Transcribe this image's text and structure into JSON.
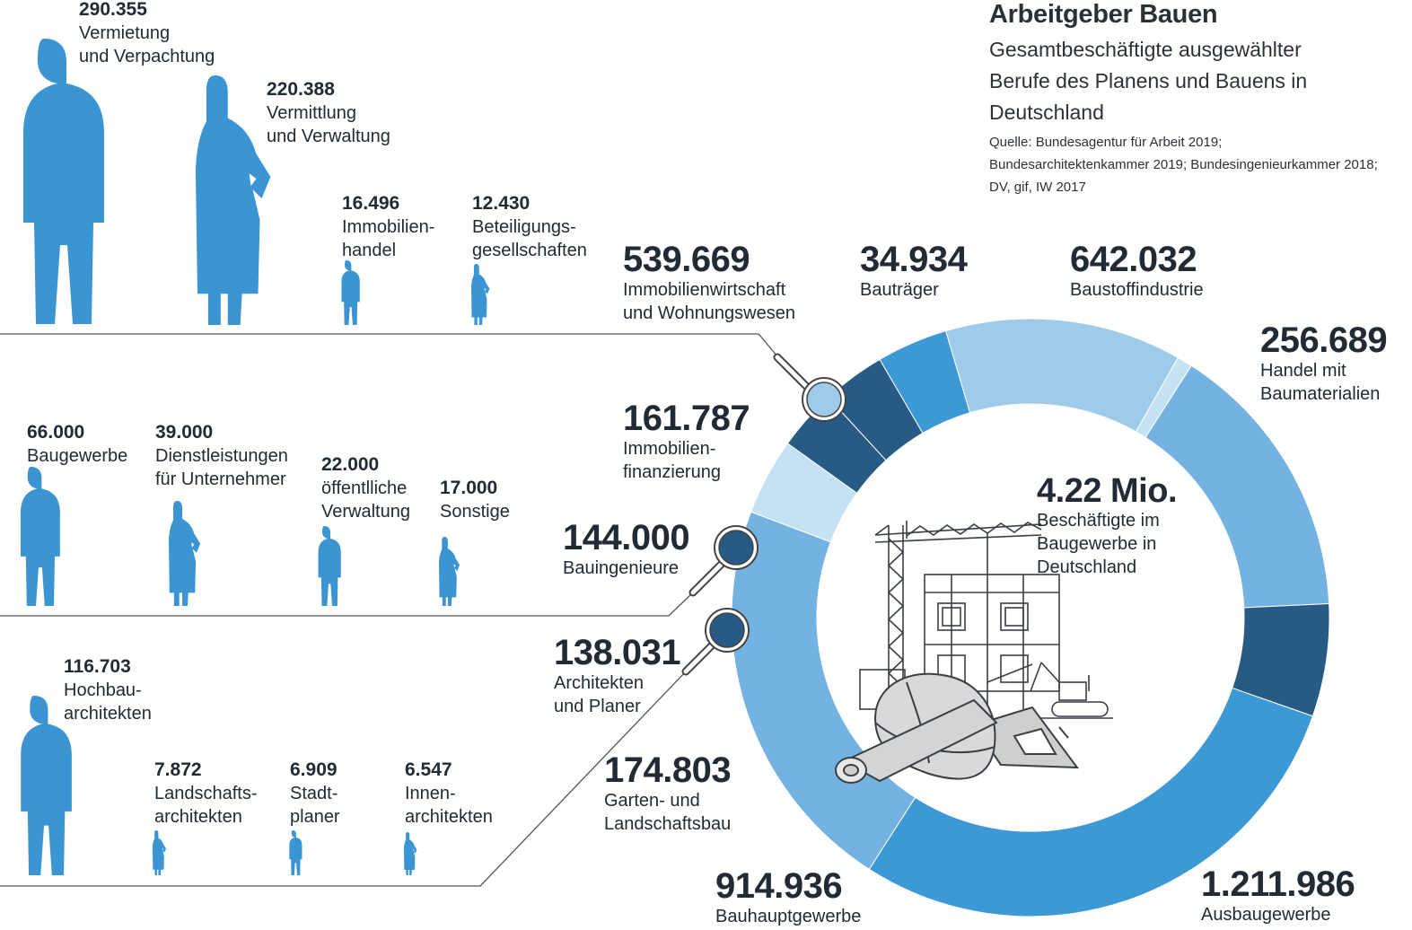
{
  "header": {
    "title": "Arbeitgeber Bauen",
    "subtitle": "Gesamtbeschäftigte ausgewählter Berufe des Planens und Bauens in Deutschland",
    "source": "Quelle: Bundesagentur für Arbeit 2019; Bundesarchitektenkammer 2019; Bundesingenieurkammer 2018; DV, gif, IW 2017"
  },
  "center": {
    "value": "4.22 Mio.",
    "label": "Beschäftigte im Baugewerbe in Deutschland"
  },
  "colors": {
    "figure": "#3a95d2",
    "ring_lightest": "#c4e2f4",
    "ring_light": "#9ecbe9",
    "ring_mid": "#74b3e1",
    "ring_medium": "#3d98d6",
    "ring_dark": "#285a86",
    "line": "#555555"
  },
  "chart_data": [
    {
      "type": "donut",
      "title": "",
      "total_label": "4.22 Mio.",
      "segments": [
        {
          "label": "Immobilienwirtschaft und Wohnungswesen",
          "value": 539669,
          "display": "539.669",
          "color": "#9ecbe9"
        },
        {
          "label": "Bauträger",
          "value": 34934,
          "display": "34.934",
          "color": "#c4e2f4"
        },
        {
          "label": "Baustoffindustrie",
          "value": 642032,
          "display": "642.032",
          "color": "#74b3e1"
        },
        {
          "label": "Handel mit Baumaterialien",
          "value": 256689,
          "display": "256.689",
          "color": "#285a86"
        },
        {
          "label": "Ausbaugewerbe",
          "value": 1211986,
          "display": "1.211.986",
          "color": "#3d98d6"
        },
        {
          "label": "Bauhauptgewerbe",
          "value": 914936,
          "display": "914.936",
          "color": "#74b3e1"
        },
        {
          "label": "Garten- und Landschaftsbau",
          "value": 174803,
          "display": "174.803",
          "color": "#c4e2f4"
        },
        {
          "label": "Architekten und Planer",
          "value": 138031,
          "display": "138.031",
          "color": "#285a86"
        },
        {
          "label": "Bauingenieure",
          "value": 144000,
          "display": "144.000",
          "color": "#285a86"
        },
        {
          "label": "Immobilienfinanzierung",
          "value": 161787,
          "display": "161.787",
          "color": "#3d98d6"
        }
      ]
    },
    {
      "type": "pictogram",
      "title": "",
      "breakdown_of": "Immobilienwirtschaft und Wohnungswesen",
      "items": [
        {
          "label": "Vermietung und Verpachtung",
          "value": 290355,
          "display": "290.355",
          "figure": "male"
        },
        {
          "label": "Vermittlung und Verwaltung",
          "value": 220388,
          "display": "220.388",
          "figure": "female"
        },
        {
          "label": "Immobilienhandel",
          "value": 16496,
          "display": "16.496",
          "figure": "male"
        },
        {
          "label": "Beteiligungsgesellschaften",
          "value": 12430,
          "display": "12.430",
          "figure": "female"
        }
      ]
    },
    {
      "type": "pictogram",
      "title": "",
      "breakdown_of": "Bauingenieure",
      "items": [
        {
          "label": "Baugewerbe",
          "value": 66000,
          "display": "66.000",
          "figure": "male"
        },
        {
          "label": "Dienstleistungen für Unternehmer",
          "value": 39000,
          "display": "39.000",
          "figure": "female"
        },
        {
          "label": "öffentlliche Verwaltung",
          "value": 22000,
          "display": "22.000",
          "figure": "male"
        },
        {
          "label": "Sonstige",
          "value": 17000,
          "display": "17.000",
          "figure": "female"
        }
      ]
    },
    {
      "type": "pictogram",
      "title": "",
      "breakdown_of": "Architekten und Planer",
      "items": [
        {
          "label": "Hochbauarchitekten",
          "value": 116703,
          "display": "116.703",
          "figure": "male"
        },
        {
          "label": "Landschaftsarchitekten",
          "value": 7872,
          "display": "7.872",
          "figure": "female"
        },
        {
          "label": "Stadtplaner",
          "value": 6909,
          "display": "6.909",
          "figure": "male"
        },
        {
          "label": "Innenarchitekten",
          "value": 6547,
          "display": "6.547",
          "figure": "female"
        }
      ]
    }
  ],
  "labels": {
    "ring": [
      {
        "value": "539.669",
        "lines": [
          "Immobilienwirtschaft",
          "und Wohnungswesen"
        ]
      },
      {
        "value": "34.934",
        "lines": [
          "Bauträger"
        ]
      },
      {
        "value": "642.032",
        "lines": [
          "Baustoffindustrie"
        ]
      },
      {
        "value": "256.689",
        "lines": [
          "Handel mit",
          "Baumaterialien"
        ]
      },
      {
        "value": "1.211.986",
        "lines": [
          "Ausbaugewerbe"
        ]
      },
      {
        "value": "914.936",
        "lines": [
          "Bauhauptgewerbe"
        ]
      },
      {
        "value": "174.803",
        "lines": [
          "Garten- und",
          "Landschaftsbau"
        ]
      },
      {
        "value": "138.031",
        "lines": [
          "Architekten",
          "und Planer"
        ]
      },
      {
        "value": "144.000",
        "lines": [
          "Bauingenieure"
        ]
      },
      {
        "value": "161.787",
        "lines": [
          "Immobilien-",
          "finanzierung"
        ]
      }
    ],
    "group1": [
      {
        "value": "290.355",
        "lines": [
          "Vermietung",
          "und Verpachtung"
        ]
      },
      {
        "value": "220.388",
        "lines": [
          "Vermittlung",
          "und Verwaltung"
        ]
      },
      {
        "value": "16.496",
        "lines": [
          "Immobilien-",
          "handel"
        ]
      },
      {
        "value": "12.430",
        "lines": [
          "Beteiligungs-",
          "gesellschaften"
        ]
      }
    ],
    "group2": [
      {
        "value": "66.000",
        "lines": [
          "Baugewerbe"
        ]
      },
      {
        "value": "39.000",
        "lines": [
          "Dienstleistungen",
          "für Unternehmer"
        ]
      },
      {
        "value": "22.000",
        "lines": [
          "öffentlliche",
          "Verwaltung"
        ]
      },
      {
        "value": "17.000",
        "lines": [
          "Sonstige"
        ]
      }
    ],
    "group3": [
      {
        "value": "116.703",
        "lines": [
          "Hochbau-",
          "architekten"
        ]
      },
      {
        "value": "7.872",
        "lines": [
          "Landschafts-",
          "architekten"
        ]
      },
      {
        "value": "6.909",
        "lines": [
          "Stadt-",
          "planer"
        ]
      },
      {
        "value": "6.547",
        "lines": [
          "Innen-",
          "architekten"
        ]
      }
    ]
  }
}
